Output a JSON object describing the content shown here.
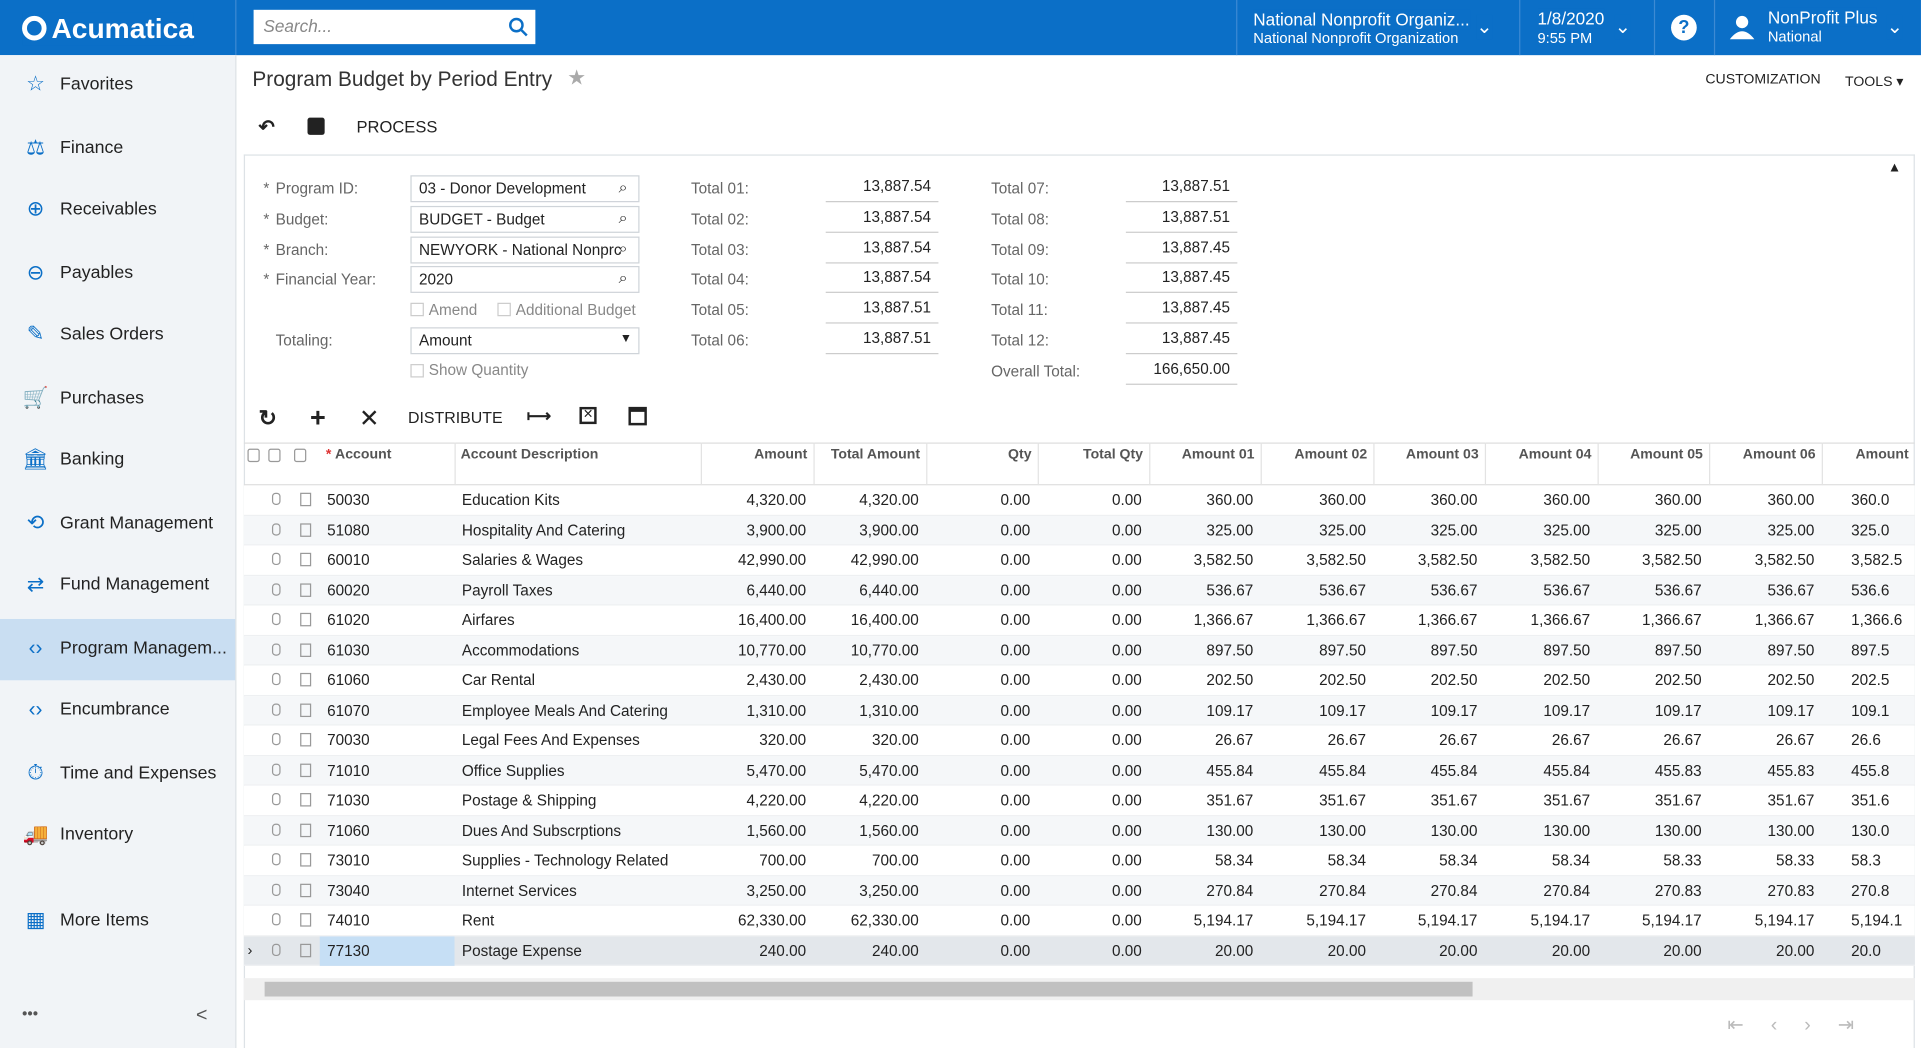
{
  "header": {
    "logo": "Acumatica",
    "search_placeholder": "Search...",
    "org_name": "National Nonprofit Organiz...",
    "org_sub": "National Nonprofit Organization",
    "date": "1/8/2020",
    "time": "9:55 PM",
    "user": "NonProfit Plus",
    "user_sub": "National",
    "help": "?"
  },
  "sidebar": {
    "items": [
      "Favorites",
      "Finance",
      "Receivables",
      "Payables",
      "Sales Orders",
      "Purchases",
      "Banking",
      "Grant Management",
      "Fund Management",
      "Program Managem...",
      "Encumbrance",
      "Time and Expenses",
      "Inventory",
      "More Items"
    ],
    "selected": 9,
    "more": "•••",
    "collapse": "<"
  },
  "page": {
    "title": "Program Budget by Period Entry",
    "customization": "CUSTOMIZATION",
    "tools": "TOOLS",
    "process": "PROCESS",
    "distribute": "DISTRIBUTE"
  },
  "form": {
    "required_mark": "*",
    "fields": [
      {
        "label": "Program ID:",
        "value": "03 - Donor Development",
        "required": true
      },
      {
        "label": "Budget:",
        "value": "BUDGET - Budget",
        "required": true
      },
      {
        "label": "Branch:",
        "value": "NEWYORK - National Nonprc",
        "required": true
      },
      {
        "label": "Financial Year:",
        "value": "2020",
        "required": true
      }
    ],
    "checkboxes": [
      "Amend",
      "Additional Budget"
    ],
    "totaling_label": "Totaling:",
    "totaling_value": "Amount",
    "show_quantity": "Show Quantity",
    "totals_left": [
      {
        "label": "Total 01:",
        "value": "13,887.54"
      },
      {
        "label": "Total 02:",
        "value": "13,887.54"
      },
      {
        "label": "Total 03:",
        "value": "13,887.54"
      },
      {
        "label": "Total 04:",
        "value": "13,887.54"
      },
      {
        "label": "Total 05:",
        "value": "13,887.51"
      },
      {
        "label": "Total 06:",
        "value": "13,887.51"
      }
    ],
    "totals_right": [
      {
        "label": "Total 07:",
        "value": "13,887.51"
      },
      {
        "label": "Total 08:",
        "value": "13,887.51"
      },
      {
        "label": "Total 09:",
        "value": "13,887.45"
      },
      {
        "label": "Total 10:",
        "value": "13,887.45"
      },
      {
        "label": "Total 11:",
        "value": "13,887.45"
      },
      {
        "label": "Total 12:",
        "value": "13,887.45"
      },
      {
        "label": "Overall Total:",
        "value": "166,650.00"
      }
    ]
  },
  "table": {
    "required_mark": "*",
    "columns": [
      "Account",
      "Account Description",
      "Amount",
      "Total Amount",
      "Qty",
      "Total Qty",
      "Amount 01",
      "Amount 02",
      "Amount 03",
      "Amount 04",
      "Amount 05",
      "Amount 06",
      "Amount"
    ],
    "rows": [
      [
        "50030",
        "Education Kits",
        "4,320.00",
        "4,320.00",
        "0.00",
        "0.00",
        "360.00",
        "360.00",
        "360.00",
        "360.00",
        "360.00",
        "360.00",
        "360.0"
      ],
      [
        "51080",
        "Hospitality And Catering",
        "3,900.00",
        "3,900.00",
        "0.00",
        "0.00",
        "325.00",
        "325.00",
        "325.00",
        "325.00",
        "325.00",
        "325.00",
        "325.0"
      ],
      [
        "60010",
        "Salaries & Wages",
        "42,990.00",
        "42,990.00",
        "0.00",
        "0.00",
        "3,582.50",
        "3,582.50",
        "3,582.50",
        "3,582.50",
        "3,582.50",
        "3,582.50",
        "3,582.5"
      ],
      [
        "60020",
        "Payroll Taxes",
        "6,440.00",
        "6,440.00",
        "0.00",
        "0.00",
        "536.67",
        "536.67",
        "536.67",
        "536.67",
        "536.67",
        "536.67",
        "536.6"
      ],
      [
        "61020",
        "Airfares",
        "16,400.00",
        "16,400.00",
        "0.00",
        "0.00",
        "1,366.67",
        "1,366.67",
        "1,366.67",
        "1,366.67",
        "1,366.67",
        "1,366.67",
        "1,366.6"
      ],
      [
        "61030",
        "Accommodations",
        "10,770.00",
        "10,770.00",
        "0.00",
        "0.00",
        "897.50",
        "897.50",
        "897.50",
        "897.50",
        "897.50",
        "897.50",
        "897.5"
      ],
      [
        "61060",
        "Car Rental",
        "2,430.00",
        "2,430.00",
        "0.00",
        "0.00",
        "202.50",
        "202.50",
        "202.50",
        "202.50",
        "202.50",
        "202.50",
        "202.5"
      ],
      [
        "61070",
        "Employee Meals And Catering",
        "1,310.00",
        "1,310.00",
        "0.00",
        "0.00",
        "109.17",
        "109.17",
        "109.17",
        "109.17",
        "109.17",
        "109.17",
        "109.1"
      ],
      [
        "70030",
        "Legal Fees And Expenses",
        "320.00",
        "320.00",
        "0.00",
        "0.00",
        "26.67",
        "26.67",
        "26.67",
        "26.67",
        "26.67",
        "26.67",
        "26.6"
      ],
      [
        "71010",
        "Office Supplies",
        "5,470.00",
        "5,470.00",
        "0.00",
        "0.00",
        "455.84",
        "455.84",
        "455.84",
        "455.84",
        "455.83",
        "455.83",
        "455.8"
      ],
      [
        "71030",
        "Postage & Shipping",
        "4,220.00",
        "4,220.00",
        "0.00",
        "0.00",
        "351.67",
        "351.67",
        "351.67",
        "351.67",
        "351.67",
        "351.67",
        "351.6"
      ],
      [
        "71060",
        "Dues And Subscrptions",
        "1,560.00",
        "1,560.00",
        "0.00",
        "0.00",
        "130.00",
        "130.00",
        "130.00",
        "130.00",
        "130.00",
        "130.00",
        "130.0"
      ],
      [
        "73010",
        "Supplies - Technology Related",
        "700.00",
        "700.00",
        "0.00",
        "0.00",
        "58.34",
        "58.34",
        "58.34",
        "58.34",
        "58.33",
        "58.33",
        "58.3"
      ],
      [
        "73040",
        "Internet Services",
        "3,250.00",
        "3,250.00",
        "0.00",
        "0.00",
        "270.84",
        "270.84",
        "270.84",
        "270.84",
        "270.83",
        "270.83",
        "270.8"
      ],
      [
        "74010",
        "Rent",
        "62,330.00",
        "62,330.00",
        "0.00",
        "0.00",
        "5,194.17",
        "5,194.17",
        "5,194.17",
        "5,194.17",
        "5,194.17",
        "5,194.17",
        "5,194.1"
      ],
      [
        "77130",
        "Postage Expense",
        "240.00",
        "240.00",
        "0.00",
        "0.00",
        "20.00",
        "20.00",
        "20.00",
        "20.00",
        "20.00",
        "20.00",
        "20.0"
      ]
    ],
    "selected_row": 15
  }
}
